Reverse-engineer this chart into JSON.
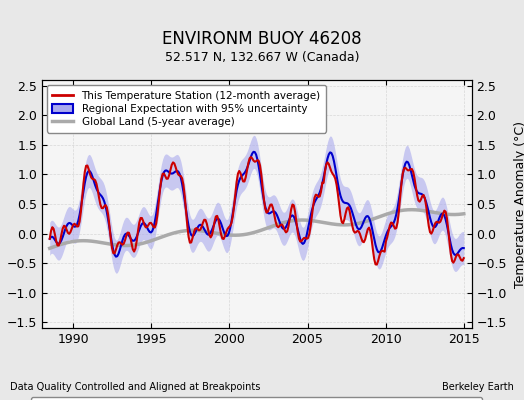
{
  "title": "ENVIRONM BUOY 46208",
  "subtitle": "52.517 N, 132.667 W (Canada)",
  "ylabel": "Temperature Anomaly (°C)",
  "xlabel_left": "Data Quality Controlled and Aligned at Breakpoints",
  "xlabel_right": "Berkeley Earth",
  "xlim": [
    1988.0,
    2015.5
  ],
  "ylim": [
    -1.6,
    2.6
  ],
  "yticks": [
    -1.5,
    -1.0,
    -0.5,
    0.0,
    0.5,
    1.0,
    1.5,
    2.0,
    2.5
  ],
  "xticks": [
    1990,
    1995,
    2000,
    2005,
    2010,
    2015
  ],
  "bg_color": "#e8e8e8",
  "plot_bg_color": "#f5f5f5",
  "red_color": "#cc0000",
  "blue_color": "#0000cc",
  "blue_fill_color": "#aaaaee",
  "gray_color": "#aaaaaa",
  "legend_entries": [
    "This Temperature Station (12-month average)",
    "Regional Expectation with 95% uncertainty",
    "Global Land (5-year average)"
  ],
  "legend_marker_colors": {
    "station_move": "#cc0000",
    "record_gap": "#009900",
    "time_obs": "#0000cc",
    "empirical_break": "#222222"
  }
}
